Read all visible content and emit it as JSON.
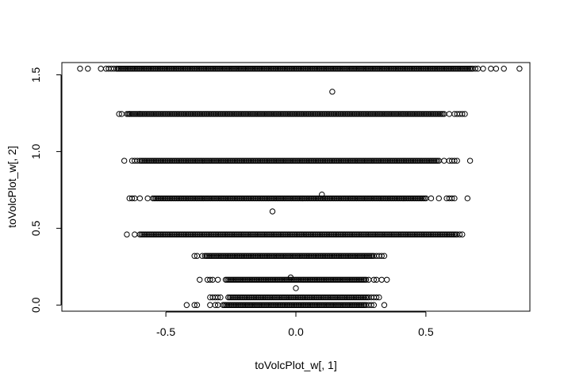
{
  "chart_data": {
    "type": "scatter",
    "title": "",
    "xlabel": "toVolcPlot_w[, 1]",
    "ylabel": "toVolcPlot_w[, 2]",
    "xlim": [
      -0.9,
      0.9
    ],
    "ylim": [
      -0.04,
      1.58
    ],
    "x_ticks": [
      {
        "value": -0.5,
        "label": "-0.5"
      },
      {
        "value": 0.0,
        "label": "0.0"
      },
      {
        "value": 0.5,
        "label": "0.5"
      }
    ],
    "y_ticks": [
      {
        "value": 0.0,
        "label": "0.0"
      },
      {
        "value": 0.5,
        "label": "0.5"
      },
      {
        "value": 1.0,
        "label": "1.0"
      },
      {
        "value": 1.5,
        "label": "1.5"
      }
    ],
    "bands": [
      {
        "y": 1.54,
        "x_min": -0.69,
        "x_max": 0.68,
        "sparse_x": [
          -0.83,
          -0.8,
          -0.75,
          -0.73,
          -0.72,
          -0.71,
          -0.7,
          0.69,
          0.7,
          0.72,
          0.75,
          0.77,
          0.8,
          0.86
        ]
      },
      {
        "y": 1.245,
        "x_min": -0.65,
        "x_max": 0.57,
        "sparse_x": [
          -0.68,
          -0.67,
          -0.64,
          -0.6,
          0.59,
          0.61,
          0.62,
          0.63,
          0.64,
          0.65
        ]
      },
      {
        "y": 0.94,
        "x_min": -0.6,
        "x_max": 0.55,
        "sparse_x": [
          -0.66,
          -0.63,
          -0.62,
          -0.61,
          0.57,
          0.59,
          0.6,
          0.61,
          0.62,
          0.67
        ]
      },
      {
        "y": 0.695,
        "x_min": -0.55,
        "x_max": 0.5,
        "sparse_x": [
          -0.64,
          -0.63,
          -0.62,
          -0.6,
          -0.57,
          0.52,
          0.55,
          0.58,
          0.59,
          0.6,
          0.61,
          0.66
        ]
      },
      {
        "y": 0.46,
        "x_min": -0.6,
        "x_max": 0.62,
        "sparse_x": [
          -0.65,
          -0.62,
          0.63,
          0.64
        ]
      },
      {
        "y": 0.32,
        "x_min": -0.35,
        "x_max": 0.3,
        "sparse_x": [
          -0.39,
          -0.38,
          -0.36,
          0.31,
          0.32,
          0.33,
          0.34
        ]
      },
      {
        "y": 0.165,
        "x_min": -0.27,
        "x_max": 0.27,
        "sparse_x": [
          -0.37,
          -0.34,
          -0.33,
          -0.32,
          -0.3,
          0.28,
          0.3,
          0.31,
          0.33,
          0.35
        ]
      },
      {
        "y": 0.05,
        "x_min": -0.26,
        "x_max": 0.28,
        "sparse_x": [
          -0.33,
          -0.32,
          -0.31,
          -0.3,
          -0.29,
          0.29,
          0.3,
          0.31,
          0.32
        ]
      },
      {
        "y": 0.0,
        "x_min": -0.28,
        "x_max": 0.27,
        "sparse_x": [
          -0.42,
          -0.39,
          -0.38,
          -0.33,
          -0.31,
          -0.3,
          0.28,
          0.29,
          0.3,
          0.34
        ]
      }
    ],
    "outliers": [
      {
        "x": 0.14,
        "y": 1.39
      },
      {
        "x": 0.1,
        "y": 0.72
      },
      {
        "x": -0.09,
        "y": 0.61
      },
      {
        "x": -0.02,
        "y": 0.18
      },
      {
        "x": 0.0,
        "y": 0.11
      }
    ],
    "grid": false,
    "legend": "none",
    "point_color": "#000000"
  }
}
